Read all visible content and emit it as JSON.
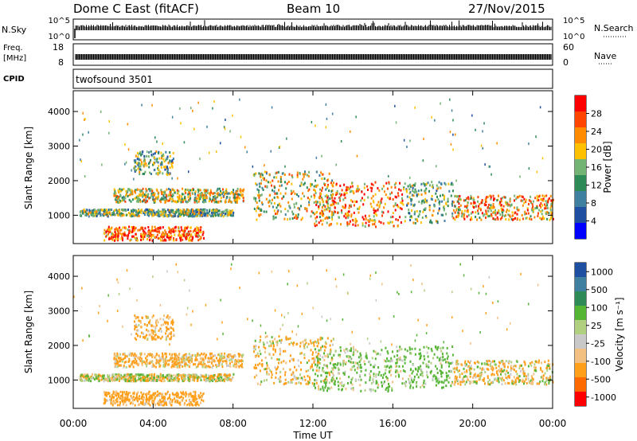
{
  "header": {
    "station": "Dome C East (fitACF)",
    "beam": "Beam 10",
    "date": "27/Nov/2015"
  },
  "panels": {
    "nsky": {
      "label": "N.Sky",
      "ticks": [
        "10^5",
        "10^0"
      ],
      "right_ticks": [
        "10^5",
        "10^0"
      ],
      "right_label": "N.Search"
    },
    "freq": {
      "label_line1": "Freq.",
      "label_line2": "[MHz]",
      "ticks": [
        "18",
        "8"
      ],
      "right_ticks": [
        "60",
        "0"
      ],
      "right_label": "Nave"
    },
    "cpid": {
      "label": "CPID",
      "value": "twofsound 3501"
    }
  },
  "colors": {
    "power": [
      "#0000ff",
      "#1e4fa0",
      "#3f7f9f",
      "#2e8b57",
      "#73b373",
      "#ffc000",
      "#ff8c00",
      "#ff4500",
      "#ff0000"
    ],
    "velocity": [
      "#ff0000",
      "#ff6a00",
      "#ff9f1a",
      "#f2c080",
      "#c8c8c8",
      "#b0d080",
      "#55b535",
      "#2e8b57",
      "#3f7f9f",
      "#1e4fa0"
    ]
  },
  "chart_data": [
    {
      "type": "heatmap",
      "name": "power",
      "xlabel": "",
      "ylabel": "Slant Range [km]",
      "x_ticks": [
        "00:00",
        "04:00",
        "08:00",
        "12:00",
        "16:00",
        "20:00",
        "00:00"
      ],
      "y_ticks": [
        1000,
        2000,
        3000,
        4000
      ],
      "ylim": [
        180,
        4600
      ],
      "xlim": [
        0,
        24
      ],
      "colorbar": {
        "label": "Power [dB]",
        "ticks": [
          4,
          8,
          12,
          16,
          20,
          24,
          28
        ],
        "range": [
          0,
          32
        ]
      },
      "regions": [
        {
          "t0": 1.5,
          "t1": 6.5,
          "r0": 300,
          "r1": 700,
          "level": 26
        },
        {
          "t0": 0.3,
          "t1": 8.0,
          "r0": 1000,
          "r1": 1200,
          "level": 14
        },
        {
          "t0": 2.0,
          "t1": 8.5,
          "r0": 1400,
          "r1": 1800,
          "level": 18
        },
        {
          "t0": 3.0,
          "t1": 5.0,
          "r0": 2200,
          "r1": 2900,
          "level": 14
        },
        {
          "t0": 9.0,
          "t1": 13.0,
          "r0": 900,
          "r1": 2300,
          "level": 18
        },
        {
          "t0": 12.0,
          "t1": 16.5,
          "r0": 700,
          "r1": 2000,
          "level": 24
        },
        {
          "t0": 16.5,
          "t1": 19.0,
          "r0": 800,
          "r1": 2000,
          "level": 14
        },
        {
          "t0": 19.0,
          "t1": 24.0,
          "r0": 900,
          "r1": 1600,
          "level": 22
        }
      ]
    },
    {
      "type": "heatmap",
      "name": "velocity",
      "xlabel": "Time UT",
      "ylabel": "Slant Range [km]",
      "x_ticks": [
        "00:00",
        "04:00",
        "08:00",
        "12:00",
        "16:00",
        "20:00",
        "00:00"
      ],
      "y_ticks": [
        1000,
        2000,
        3000,
        4000
      ],
      "ylim": [
        180,
        4600
      ],
      "xlim": [
        0,
        24
      ],
      "colorbar": {
        "label": "Velocity [m s⁻¹]",
        "ticks": [
          1000,
          500,
          100,
          25,
          -25,
          -100,
          -500,
          -1000
        ]
      },
      "regions": [
        {
          "t0": 1.5,
          "t1": 6.5,
          "r0": 300,
          "r1": 700,
          "level": -250
        },
        {
          "t0": 0.3,
          "t1": 8.0,
          "r0": 1000,
          "r1": 1200,
          "level": 0
        },
        {
          "t0": 2.0,
          "t1": 8.5,
          "r0": 1400,
          "r1": 1800,
          "level": -150
        },
        {
          "t0": 3.0,
          "t1": 5.0,
          "r0": 2200,
          "r1": 2900,
          "level": -200
        },
        {
          "t0": 9.0,
          "t1": 13.0,
          "r0": 900,
          "r1": 2300,
          "level": -100
        },
        {
          "t0": 12.0,
          "t1": 16.5,
          "r0": 700,
          "r1": 2000,
          "level": 150
        },
        {
          "t0": 16.5,
          "t1": 19.0,
          "r0": 800,
          "r1": 2000,
          "level": 200
        },
        {
          "t0": 19.0,
          "t1": 24.0,
          "r0": 900,
          "r1": 1600,
          "level": -80
        }
      ]
    }
  ]
}
